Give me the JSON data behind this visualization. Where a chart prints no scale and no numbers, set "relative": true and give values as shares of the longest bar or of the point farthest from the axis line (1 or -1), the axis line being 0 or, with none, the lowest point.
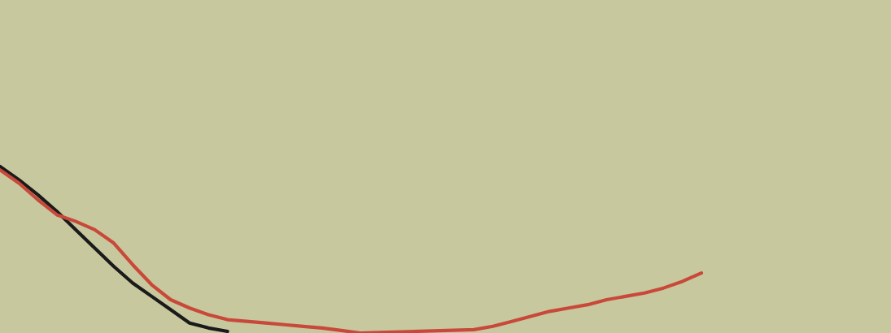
{
  "chart_data": {
    "type": "line",
    "relative": true,
    "categories": [
      null,
      null,
      null,
      null,
      null,
      null,
      null,
      null,
      null,
      null,
      null,
      null,
      null,
      null,
      null,
      null,
      null,
      null,
      null,
      null,
      null,
      null,
      null,
      null,
      null,
      null,
      null,
      null,
      null,
      null,
      null,
      null,
      null,
      null,
      null,
      null,
      null,
      null,
      null,
      null,
      null,
      null,
      null,
      null,
      null,
      null,
      null,
      null
    ],
    "series": [
      {
        "color": "#1a1a1a",
        "values": [
          1.0,
          0.92,
          0.83,
          0.73,
          0.62,
          0.51,
          0.4,
          0.3,
          0.22,
          0.14,
          0.06,
          0.03,
          0.01,
          null,
          null,
          null,
          null,
          null,
          null,
          null,
          null,
          null,
          null,
          null,
          null,
          null,
          null,
          null,
          null,
          null,
          null,
          null,
          null,
          null,
          null,
          null,
          null,
          null,
          null,
          null,
          null,
          null,
          null,
          null,
          null,
          null,
          null,
          null
        ]
      },
      {
        "color": "#c8493a",
        "values": [
          0.98,
          0.9,
          0.8,
          0.71,
          0.67,
          0.62,
          0.54,
          0.41,
          0.29,
          0.2,
          0.15,
          0.11,
          0.08,
          0.07,
          0.06,
          0.05,
          0.04,
          0.03,
          0.015,
          0.0,
          null,
          null,
          null,
          null,
          null,
          0.02,
          0.04,
          0.07,
          0.1,
          0.13,
          0.15,
          0.17,
          0.2,
          0.22,
          0.24,
          0.27,
          0.31,
          0.36,
          null,
          null,
          null,
          null,
          null,
          null,
          null,
          null,
          null,
          null
        ]
      }
    ]
  }
}
